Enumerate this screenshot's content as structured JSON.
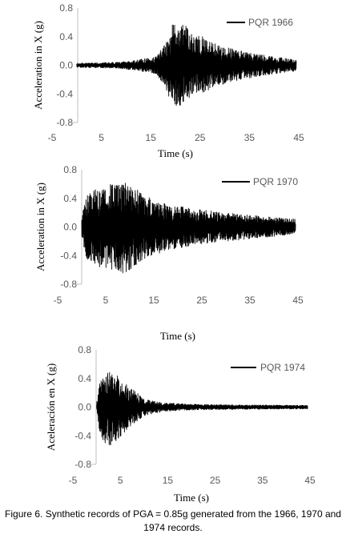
{
  "caption": "Figure 6. Synthetic records of PGA = 0.85g generated from the 1966, 1970 and 1974 records.",
  "chart_data": [
    {
      "type": "line",
      "series": [
        {
          "name": "PQR 1966",
          "color": "#000000"
        }
      ],
      "xlabel": "Time (s)",
      "ylabel": "Acceleration in X (g)",
      "xlim": [
        -5,
        45
      ],
      "ylim": [
        -0.8,
        0.8
      ],
      "xticks": [
        "-5",
        "5",
        "15",
        "25",
        "35",
        "45"
      ],
      "yticks": [
        "0.8",
        "0.4",
        "0.0",
        "-0.4",
        "-0.8"
      ],
      "envelope": [
        [
          0,
          0.03
        ],
        [
          8,
          0.04
        ],
        [
          12,
          0.07
        ],
        [
          16,
          0.12
        ],
        [
          18,
          0.3
        ],
        [
          19,
          0.55
        ],
        [
          21,
          0.62
        ],
        [
          22,
          0.55
        ],
        [
          25,
          0.42
        ],
        [
          28,
          0.3
        ],
        [
          32,
          0.22
        ],
        [
          38,
          0.14
        ],
        [
          43,
          0.09
        ],
        [
          44.5,
          0.08
        ]
      ],
      "grid": false,
      "legend": "top-right"
    },
    {
      "type": "line",
      "series": [
        {
          "name": "PQR 1970",
          "color": "#000000"
        }
      ],
      "xlabel": "Time (s)",
      "ylabel": "Acceleration in X (g)",
      "xlim": [
        -5,
        45
      ],
      "ylim": [
        -0.8,
        0.8
      ],
      "xticks": [
        "-5",
        "5",
        "15",
        "25",
        "35",
        "45"
      ],
      "yticks": [
        "0.8",
        "0.4",
        "0.0",
        "-0.4",
        "-0.8"
      ],
      "envelope": [
        [
          0,
          0.15
        ],
        [
          1,
          0.45
        ],
        [
          3,
          0.55
        ],
        [
          6,
          0.6
        ],
        [
          9,
          0.65
        ],
        [
          11,
          0.55
        ],
        [
          14,
          0.42
        ],
        [
          18,
          0.32
        ],
        [
          24,
          0.25
        ],
        [
          30,
          0.2
        ],
        [
          36,
          0.16
        ],
        [
          42,
          0.12
        ],
        [
          44.5,
          0.11
        ]
      ],
      "grid": false,
      "legend": "top-right"
    },
    {
      "type": "line",
      "series": [
        {
          "name": "PQR 1974",
          "color": "#000000"
        }
      ],
      "xlabel": "Time (s)",
      "ylabel": "Aceleración en X (g)",
      "xlim": [
        -5,
        45
      ],
      "ylim": [
        -0.8,
        0.8
      ],
      "xticks": [
        "-5",
        "5",
        "15",
        "25",
        "35",
        "45"
      ],
      "yticks": [
        "0.8",
        "0.4",
        "0.0",
        "-0.4",
        "-0.8"
      ],
      "envelope": [
        [
          0,
          0.05
        ],
        [
          0.5,
          0.3
        ],
        [
          1.5,
          0.5
        ],
        [
          3,
          0.55
        ],
        [
          5,
          0.42
        ],
        [
          7,
          0.28
        ],
        [
          10,
          0.12
        ],
        [
          14,
          0.06
        ],
        [
          20,
          0.04
        ],
        [
          30,
          0.03
        ],
        [
          44.5,
          0.025
        ]
      ],
      "grid": false,
      "legend": "top-right"
    }
  ]
}
